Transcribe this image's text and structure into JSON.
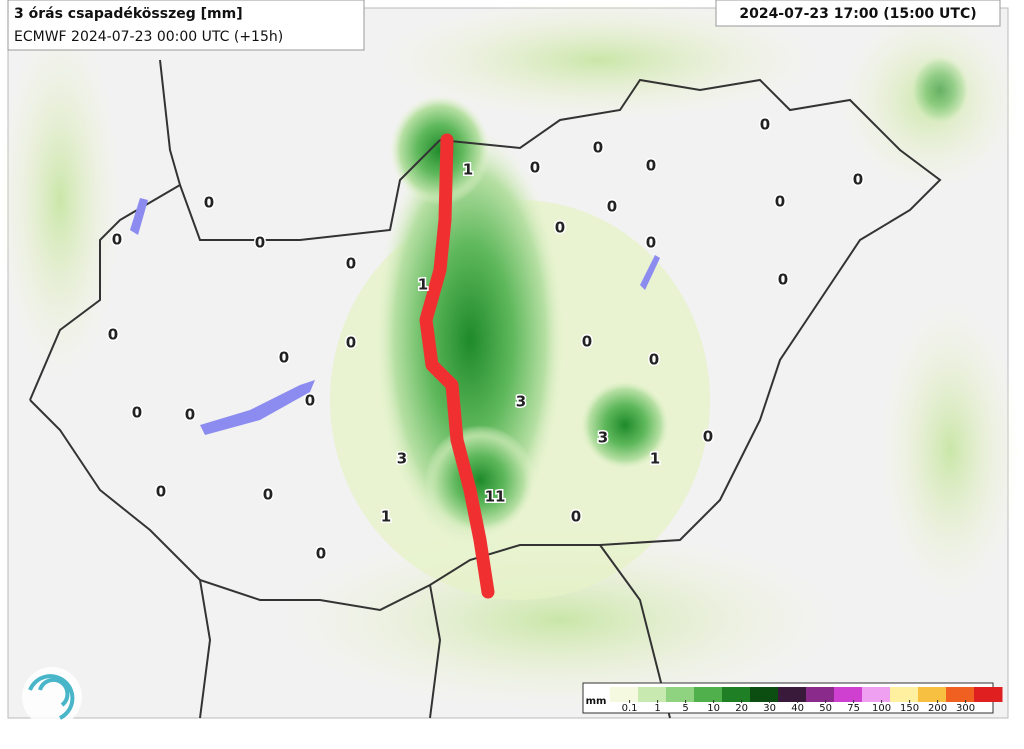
{
  "header": {
    "title": "3 órás csapadékösszeg [mm]",
    "subtitle": "ECMWF 2024-07-23 00:00 UTC (+15h)",
    "valid_time": "2024-07-23 17:00 (15:00 UTC)"
  },
  "points": [
    1,
    0,
    0,
    0,
    0,
    0,
    0,
    0,
    0,
    0,
    0,
    0,
    0,
    0,
    0,
    1,
    0,
    0,
    0,
    0,
    0,
    3,
    0,
    0,
    0,
    3,
    0,
    1,
    3,
    0,
    0,
    11,
    1,
    0,
    0
  ],
  "legend": {
    "unit": "mm",
    "ticks": [
      0.1,
      1,
      5,
      10,
      20,
      30,
      40,
      50,
      75,
      100,
      150,
      200,
      300
    ]
  }
}
